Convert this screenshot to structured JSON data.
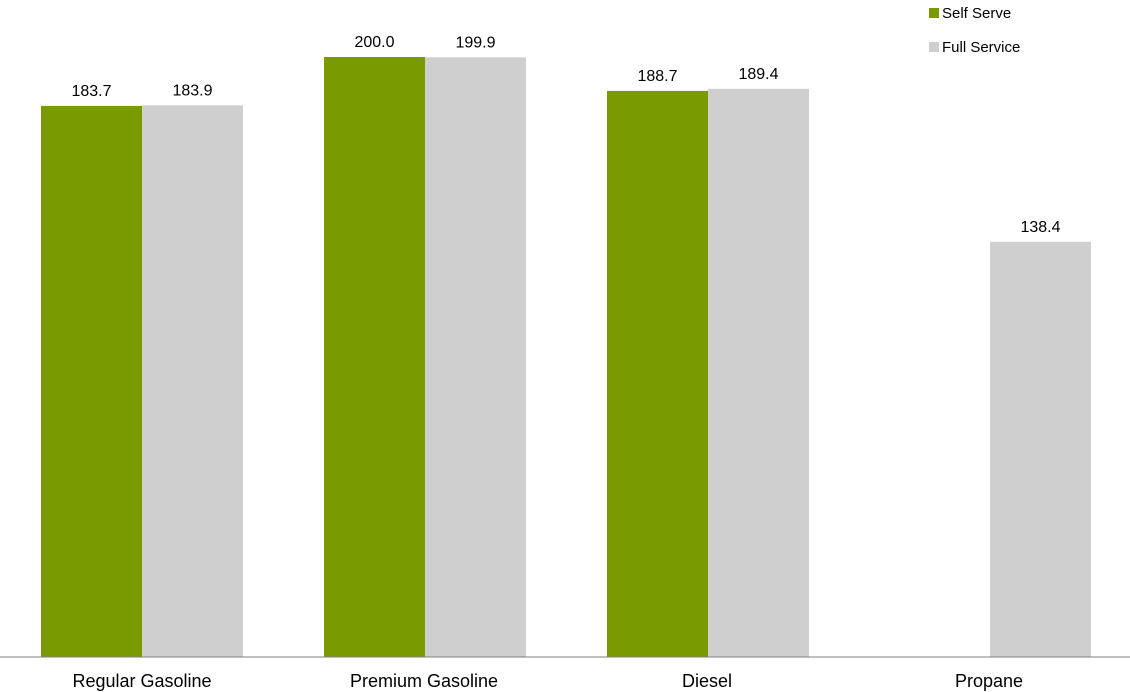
{
  "chart_data": {
    "type": "bar",
    "title": "",
    "xlabel": "",
    "ylabel": "",
    "categories": [
      "Regular Gasoline",
      "Premium Gasoline",
      "Diesel",
      "Propane"
    ],
    "series": [
      {
        "name": "Self Serve",
        "color": "#7a9a01",
        "values": [
          183.7,
          200.0,
          188.7,
          null
        ],
        "labels": [
          "183.7",
          "200.0",
          "188.7",
          ""
        ]
      },
      {
        "name": "Full Service",
        "color": "#d0cfd0",
        "values": [
          183.9,
          199.9,
          189.4,
          138.4
        ],
        "labels": [
          "183.9",
          "199.9",
          "189.4",
          "138.4"
        ]
      }
    ],
    "ylim": [
      0,
      213
    ],
    "grid": false,
    "legend_position": "top-right"
  }
}
